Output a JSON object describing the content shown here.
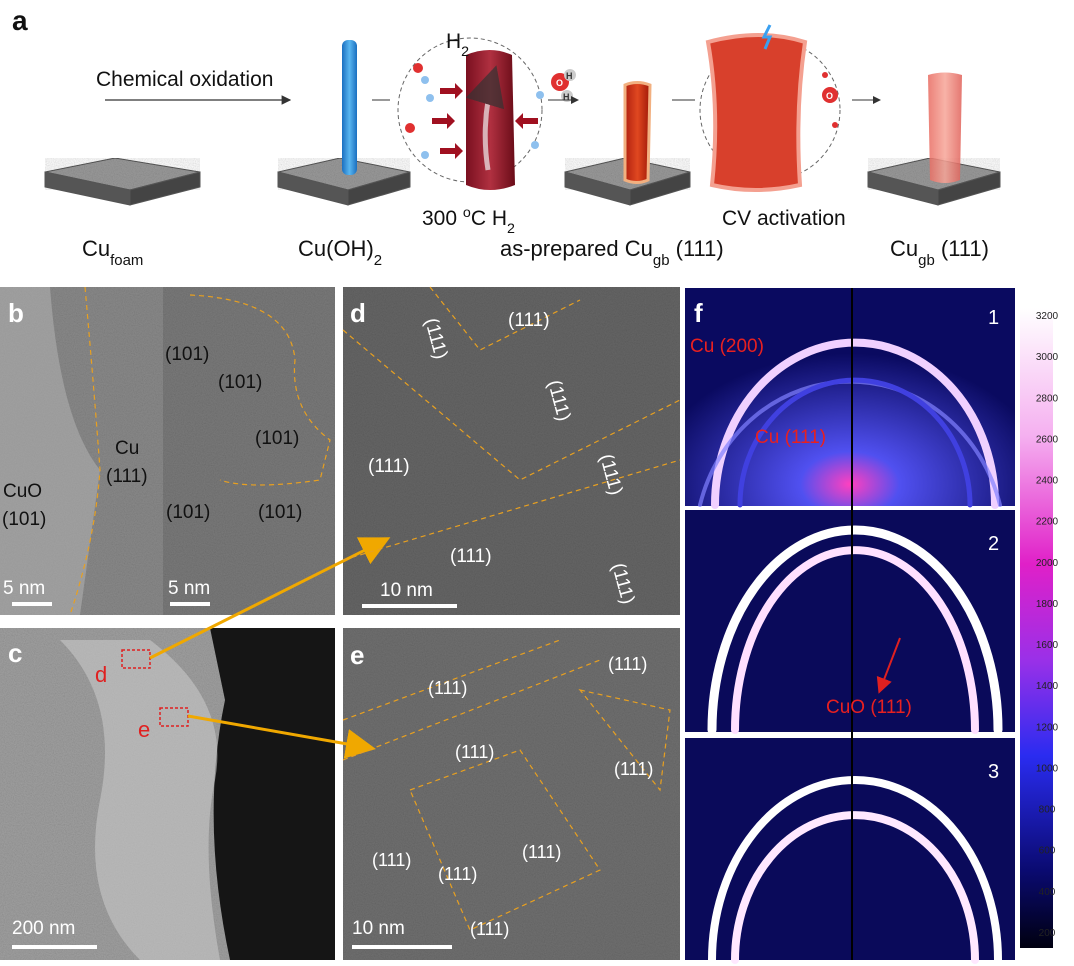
{
  "panel_a": {
    "label": "a",
    "arrow_text": "Chemical oxidation",
    "gas": [
      {
        "t": "H"
      },
      {
        "sub": "2"
      }
    ],
    "conditions": [
      [
        {
          "t": "300 "
        },
        {
          "sup": "o"
        },
        {
          "t": "C H"
        },
        {
          "sub": "2"
        }
      ],
      [
        {
          "t": "CV activation"
        }
      ]
    ],
    "materials": [
      [
        {
          "t": "Cu"
        },
        {
          "sub": "foam"
        }
      ],
      [
        {
          "t": "Cu(OH)"
        },
        {
          "sub": "2"
        }
      ],
      [
        {
          "t": "as-prepared Cu"
        },
        {
          "sub": "gb"
        },
        {
          "t": " (111)"
        }
      ],
      [
        {
          "t": "Cu"
        },
        {
          "sub": "gb"
        },
        {
          "t": " (111)"
        }
      ]
    ],
    "molecule_labels": [
      "O",
      "H",
      "H",
      "O"
    ]
  },
  "panel_b": {
    "label": "b",
    "annotations": [
      "Cu",
      "(111)",
      "CuO",
      "(101)",
      "(101)",
      "(101)",
      "(101)",
      "(101)",
      "(101)"
    ],
    "scale_bars": [
      "5 nm",
      "5 nm"
    ]
  },
  "panel_c": {
    "label": "c",
    "markers": [
      "d",
      "e"
    ],
    "scale_bar": "200 nm"
  },
  "panel_d": {
    "label": "d",
    "annotations": [
      "(111)",
      "(111)",
      "(111)",
      "(111)",
      "(111)",
      "(111)",
      "(111)"
    ],
    "scale_bar": "10 nm"
  },
  "panel_e": {
    "label": "e",
    "annotations": [
      "(111)",
      "(111)",
      "(111)",
      "(111)",
      "(111)",
      "(111)",
      "(111)",
      "(111)"
    ],
    "scale_bar": "10 nm"
  },
  "panel_f": {
    "label": "f",
    "subpanels": [
      "1",
      "2",
      "3"
    ],
    "labels": [
      "Cu (200)",
      "Cu (111)",
      "CuO (111)"
    ],
    "colorbar_ticks": [
      200,
      400,
      600,
      800,
      1000,
      1200,
      1400,
      1600,
      1800,
      2000,
      2200,
      2400,
      2600,
      2800,
      3000,
      3200
    ]
  }
}
